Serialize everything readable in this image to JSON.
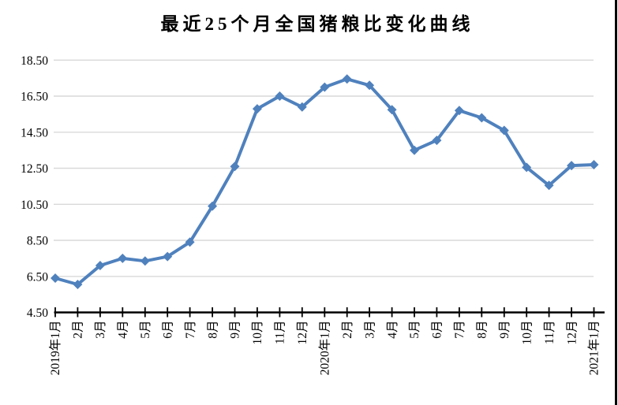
{
  "page": {
    "background": "#ffffff",
    "right_border_color": "#000000"
  },
  "chart_data": {
    "type": "line",
    "title": "最近25个月全国猪粮比变化曲线",
    "categories": [
      "2019年1月",
      "2月",
      "3月",
      "4月",
      "5月",
      "6月",
      "7月",
      "8月",
      "9月",
      "10月",
      "11月",
      "12月",
      "2020年1月",
      "2月",
      "3月",
      "4月",
      "5月",
      "6月",
      "7月",
      "8月",
      "9月",
      "10月",
      "11月",
      "12月",
      "2021年1月"
    ],
    "values": [
      6.4,
      6.05,
      7.1,
      7.5,
      7.35,
      7.6,
      8.4,
      10.4,
      12.6,
      15.8,
      16.5,
      15.9,
      17.0,
      17.45,
      17.1,
      15.75,
      13.5,
      14.05,
      15.7,
      15.3,
      14.6,
      12.55,
      11.55,
      12.65,
      12.7
    ],
    "xlabel": "",
    "ylabel": "",
    "ylim": [
      4.5,
      18.5
    ],
    "ytick_interval": 2.0,
    "ytick_labels": [
      "4.50",
      "6.50",
      "8.50",
      "10.50",
      "12.50",
      "14.50",
      "16.50",
      "18.50"
    ],
    "grid": true,
    "legend_position": "none",
    "marker": "diamond",
    "line_color": "#4F81BD",
    "gridline_color": "#D9D9D9",
    "axis_color": "#000000",
    "x_label_rotation": -90
  }
}
